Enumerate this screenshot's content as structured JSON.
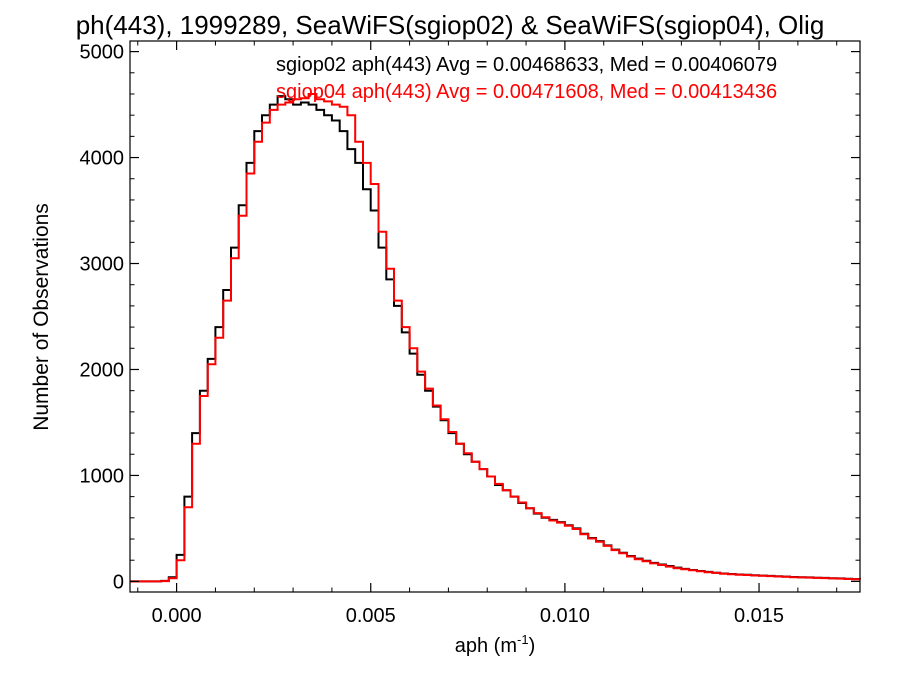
{
  "chart_data": {
    "type": "line",
    "title": "ph(443), 1999289, SeaWiFS(sgiop02) & SeaWiFS(sgiop04), Olig",
    "xlabel_base": "aph (m",
    "xlabel_sup": "-1",
    "xlabel_end": ")",
    "ylabel": "Number of Observations",
    "xlim": [
      -0.0012,
      0.0176
    ],
    "ylim": [
      -100,
      5100
    ],
    "xticks": [
      0.0,
      0.005,
      0.01,
      0.015
    ],
    "xtick_labels": [
      "0.000",
      "0.005",
      "0.010",
      "0.015"
    ],
    "yticks": [
      0,
      1000,
      2000,
      3000,
      4000,
      5000
    ],
    "ytick_labels": [
      "0",
      "1000",
      "2000",
      "3000",
      "4000",
      "5000"
    ],
    "grid": false,
    "legend_placement": "top-right",
    "series": [
      {
        "name": "sgiop02",
        "color": "#000000",
        "annotation": "sgiop02 aph(443) Avg = 0.00468633, Med = 0.00406079",
        "points": [
          [
            -0.0012,
            0
          ],
          [
            -0.0008,
            0
          ],
          [
            -0.0004,
            5
          ],
          [
            -0.0002,
            40
          ],
          [
            0.0,
            250
          ],
          [
            0.0002,
            800
          ],
          [
            0.0004,
            1400
          ],
          [
            0.0006,
            1800
          ],
          [
            0.0008,
            2100
          ],
          [
            0.001,
            2400
          ],
          [
            0.0012,
            2750
          ],
          [
            0.0014,
            3150
          ],
          [
            0.0016,
            3550
          ],
          [
            0.0018,
            3950
          ],
          [
            0.002,
            4250
          ],
          [
            0.0022,
            4400
          ],
          [
            0.0024,
            4500
          ],
          [
            0.0026,
            4580
          ],
          [
            0.0028,
            4550
          ],
          [
            0.003,
            4500
          ],
          [
            0.0032,
            4520
          ],
          [
            0.0034,
            4500
          ],
          [
            0.0036,
            4450
          ],
          [
            0.0038,
            4400
          ],
          [
            0.004,
            4350
          ],
          [
            0.0042,
            4250
          ],
          [
            0.0044,
            4080
          ],
          [
            0.0046,
            3950
          ],
          [
            0.0048,
            3700
          ],
          [
            0.005,
            3500
          ],
          [
            0.0052,
            3150
          ],
          [
            0.0054,
            2850
          ],
          [
            0.0056,
            2600
          ],
          [
            0.0058,
            2350
          ],
          [
            0.006,
            2150
          ],
          [
            0.0062,
            1950
          ],
          [
            0.0064,
            1800
          ],
          [
            0.0066,
            1650
          ],
          [
            0.0068,
            1520
          ],
          [
            0.007,
            1400
          ],
          [
            0.0072,
            1300
          ],
          [
            0.0074,
            1200
          ],
          [
            0.0076,
            1130
          ],
          [
            0.0078,
            1060
          ],
          [
            0.008,
            990
          ],
          [
            0.0082,
            910
          ],
          [
            0.0084,
            860
          ],
          [
            0.0086,
            800
          ],
          [
            0.0088,
            740
          ],
          [
            0.009,
            690
          ],
          [
            0.0092,
            640
          ],
          [
            0.0094,
            600
          ],
          [
            0.0096,
            580
          ],
          [
            0.0098,
            560
          ],
          [
            0.01,
            530
          ],
          [
            0.0102,
            500
          ],
          [
            0.0104,
            450
          ],
          [
            0.0106,
            410
          ],
          [
            0.0108,
            380
          ],
          [
            0.011,
            340
          ],
          [
            0.0112,
            300
          ],
          [
            0.0114,
            270
          ],
          [
            0.0116,
            240
          ],
          [
            0.0118,
            215
          ],
          [
            0.012,
            195
          ],
          [
            0.0122,
            175
          ],
          [
            0.0124,
            160
          ],
          [
            0.0126,
            145
          ],
          [
            0.0128,
            130
          ],
          [
            0.013,
            118
          ],
          [
            0.0132,
            108
          ],
          [
            0.0134,
            98
          ],
          [
            0.0136,
            90
          ],
          [
            0.0138,
            82
          ],
          [
            0.014,
            75
          ],
          [
            0.0142,
            70
          ],
          [
            0.0144,
            65
          ],
          [
            0.0146,
            62
          ],
          [
            0.0148,
            58
          ],
          [
            0.015,
            55
          ],
          [
            0.0152,
            52
          ],
          [
            0.0154,
            48
          ],
          [
            0.0156,
            45
          ],
          [
            0.0158,
            42
          ],
          [
            0.016,
            40
          ],
          [
            0.0162,
            38
          ],
          [
            0.0164,
            35
          ],
          [
            0.0166,
            33
          ],
          [
            0.0168,
            30
          ],
          [
            0.017,
            28
          ],
          [
            0.0172,
            25
          ],
          [
            0.0174,
            22
          ],
          [
            0.0176,
            20
          ]
        ]
      },
      {
        "name": "sgiop04",
        "color": "#ff0000",
        "annotation": "sgiop04 aph(443) Avg = 0.00471608, Med = 0.00413436",
        "points": [
          [
            -0.0012,
            0
          ],
          [
            -0.0008,
            0
          ],
          [
            -0.0004,
            3
          ],
          [
            -0.0002,
            30
          ],
          [
            0.0,
            200
          ],
          [
            0.0002,
            700
          ],
          [
            0.0004,
            1300
          ],
          [
            0.0006,
            1750
          ],
          [
            0.0008,
            2050
          ],
          [
            0.001,
            2300
          ],
          [
            0.0012,
            2650
          ],
          [
            0.0014,
            3050
          ],
          [
            0.0016,
            3450
          ],
          [
            0.0018,
            3850
          ],
          [
            0.002,
            4150
          ],
          [
            0.0022,
            4330
          ],
          [
            0.0024,
            4450
          ],
          [
            0.0026,
            4500
          ],
          [
            0.0028,
            4520
          ],
          [
            0.003,
            4550
          ],
          [
            0.0032,
            4560
          ],
          [
            0.0034,
            4600
          ],
          [
            0.0036,
            4550
          ],
          [
            0.0038,
            4530
          ],
          [
            0.004,
            4500
          ],
          [
            0.0042,
            4480
          ],
          [
            0.0044,
            4400
          ],
          [
            0.0046,
            4150
          ],
          [
            0.0048,
            3950
          ],
          [
            0.005,
            3750
          ],
          [
            0.0052,
            3300
          ],
          [
            0.0054,
            2950
          ],
          [
            0.0056,
            2650
          ],
          [
            0.0058,
            2400
          ],
          [
            0.006,
            2200
          ],
          [
            0.0062,
            1980
          ],
          [
            0.0064,
            1820
          ],
          [
            0.0066,
            1660
          ],
          [
            0.0068,
            1530
          ],
          [
            0.007,
            1410
          ],
          [
            0.0072,
            1300
          ],
          [
            0.0074,
            1210
          ],
          [
            0.0076,
            1130
          ],
          [
            0.0078,
            1060
          ],
          [
            0.008,
            990
          ],
          [
            0.0082,
            920
          ],
          [
            0.0084,
            860
          ],
          [
            0.0086,
            800
          ],
          [
            0.0088,
            745
          ],
          [
            0.009,
            690
          ],
          [
            0.0092,
            645
          ],
          [
            0.0094,
            605
          ],
          [
            0.0096,
            575
          ],
          [
            0.0098,
            555
          ],
          [
            0.01,
            525
          ],
          [
            0.0102,
            495
          ],
          [
            0.0104,
            445
          ],
          [
            0.0106,
            405
          ],
          [
            0.0108,
            375
          ],
          [
            0.011,
            335
          ],
          [
            0.0112,
            295
          ],
          [
            0.0114,
            265
          ],
          [
            0.0116,
            235
          ],
          [
            0.0118,
            210
          ],
          [
            0.012,
            190
          ],
          [
            0.0122,
            170
          ],
          [
            0.0124,
            155
          ],
          [
            0.0126,
            140
          ],
          [
            0.0128,
            125
          ],
          [
            0.013,
            115
          ],
          [
            0.0132,
            105
          ],
          [
            0.0134,
            95
          ],
          [
            0.0136,
            87
          ],
          [
            0.0138,
            80
          ],
          [
            0.014,
            73
          ],
          [
            0.0142,
            68
          ],
          [
            0.0144,
            63
          ],
          [
            0.0146,
            60
          ],
          [
            0.0148,
            56
          ],
          [
            0.015,
            53
          ],
          [
            0.0152,
            50
          ],
          [
            0.0154,
            46
          ],
          [
            0.0156,
            43
          ],
          [
            0.0158,
            40
          ],
          [
            0.016,
            38
          ],
          [
            0.0162,
            36
          ],
          [
            0.0164,
            33
          ],
          [
            0.0166,
            31
          ],
          [
            0.0168,
            28
          ],
          [
            0.017,
            26
          ],
          [
            0.0172,
            23
          ],
          [
            0.0174,
            20
          ],
          [
            0.0176,
            18
          ]
        ]
      }
    ]
  }
}
